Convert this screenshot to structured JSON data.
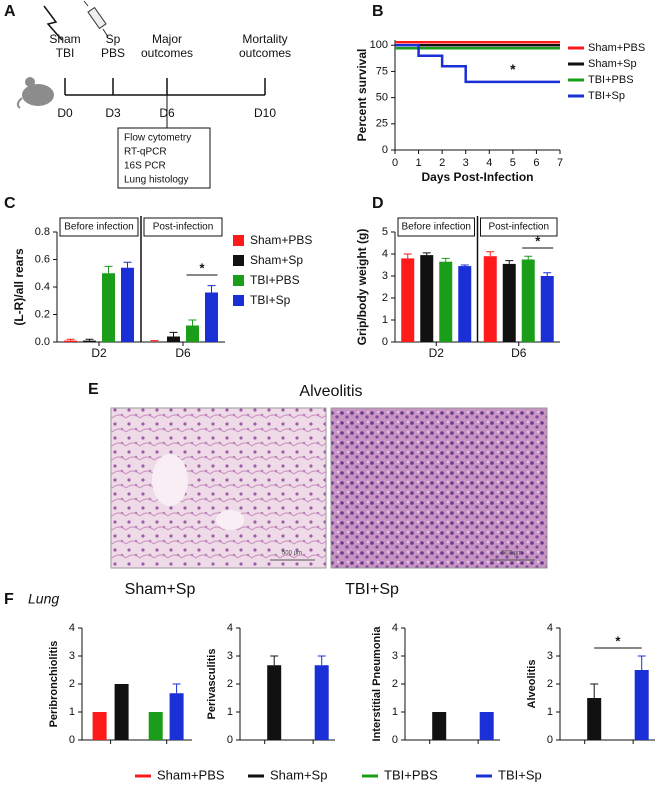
{
  "panel_labels": [
    "A",
    "B",
    "C",
    "D",
    "E",
    "F"
  ],
  "timeline": {
    "events": [
      {
        "top": [
          "Sham",
          "TBI"
        ],
        "day": "D0"
      },
      {
        "top": [
          "Sp",
          "PBS"
        ],
        "day": "D3"
      },
      {
        "top": [
          "Major",
          "outcomes"
        ],
        "day": "D6"
      },
      {
        "top": [
          "Mortality",
          "outcomes"
        ],
        "day": "D10"
      }
    ],
    "assays": [
      "Flow cytometry",
      "RT-qPCR",
      "16S PCR",
      "Lung histology"
    ]
  },
  "chart_data": [
    {
      "type": "line",
      "step": true,
      "ylabel": "Percent survival",
      "xlabel": "Days Post-Infection",
      "xlim": [
        0,
        7
      ],
      "xticks": [
        0,
        1,
        2,
        3,
        4,
        5,
        6,
        7
      ],
      "ylim": [
        0,
        105
      ],
      "yticks": [
        0,
        25,
        50,
        75,
        100
      ],
      "annotation": "*",
      "series": [
        {
          "name": "Sham+PBS",
          "color": "#ff1a1a",
          "x": [
            0,
            7
          ],
          "values": [
            100,
            100
          ]
        },
        {
          "name": "Sham+Sp",
          "color": "#111111",
          "x": [
            0,
            7
          ],
          "values": [
            100,
            100
          ]
        },
        {
          "name": "TBI+PBS",
          "color": "#1a9e1a",
          "x": [
            0,
            7
          ],
          "values": [
            100,
            100
          ]
        },
        {
          "name": "TBI+Sp",
          "color": "#1a2fd6",
          "x": [
            0,
            1,
            2,
            3,
            7
          ],
          "values": [
            100,
            90,
            80,
            65,
            65
          ]
        }
      ]
    },
    {
      "type": "bar",
      "ylabel": "(L-R)/all rears",
      "categories": [
        "D2",
        "D6"
      ],
      "groups": [
        "Before infection",
        "Post-infection"
      ],
      "ylim": [
        0,
        0.8
      ],
      "yticks": [
        {
          "value": 0,
          "label": "0.0"
        },
        0.2,
        0.4,
        0.6,
        0.8
      ],
      "annotation": "*",
      "series": [
        {
          "name": "Sham+PBS",
          "color": "#ff1a1a",
          "values": [
            0.01,
            0.0
          ],
          "errors": [
            0.01,
            0.01
          ]
        },
        {
          "name": "Sham+Sp",
          "color": "#111111",
          "values": [
            0.01,
            0.04
          ],
          "errors": [
            0.01,
            0.03
          ]
        },
        {
          "name": "TBI+PBS",
          "color": "#1a9e1a",
          "values": [
            0.5,
            0.12
          ],
          "errors": [
            0.05,
            0.04
          ]
        },
        {
          "name": "TBI+Sp",
          "color": "#1a2fd6",
          "values": [
            0.54,
            0.36
          ],
          "errors": [
            0.04,
            0.05
          ]
        }
      ]
    },
    {
      "type": "bar",
      "ylabel": "Grip/body weight (g)",
      "categories": [
        "D2",
        "D6"
      ],
      "groups": [
        "Before infection",
        "Post-infection"
      ],
      "ylim": [
        0,
        5
      ],
      "yticks": [
        0,
        1,
        2,
        3,
        4,
        5
      ],
      "annotation": "*",
      "series": [
        {
          "color": "#ff1a1a",
          "values": [
            3.8,
            3.9
          ],
          "errors": [
            0.2,
            0.2
          ]
        },
        {
          "color": "#111111",
          "values": [
            3.95,
            3.55
          ],
          "errors": [
            0.1,
            0.15
          ]
        },
        {
          "color": "#1a9e1a",
          "values": [
            3.65,
            3.75
          ],
          "errors": [
            0.15,
            0.15
          ]
        },
        {
          "color": "#1a2fd6",
          "values": [
            3.45,
            3.0
          ],
          "errors": [
            0.05,
            0.15
          ]
        }
      ]
    },
    {
      "type": "score",
      "ylabel": "Peribronchiolitis",
      "ylim": [
        0,
        4
      ],
      "yticks": [
        0,
        1,
        2,
        3,
        4
      ],
      "values": [
        1,
        2,
        1,
        1.67
      ],
      "errors": [
        null,
        null,
        null,
        0.33
      ]
    },
    {
      "type": "score",
      "ylabel": "Perivasculitis",
      "ylim": [
        0,
        4
      ],
      "yticks": [
        0,
        1,
        2,
        3,
        4
      ],
      "values": [
        null,
        2.67,
        null,
        2.67
      ],
      "errors": [
        null,
        0.33,
        null,
        0.33
      ]
    },
    {
      "type": "score",
      "ylabel": "Interstitial Pneumonia",
      "ylim": [
        0,
        4
      ],
      "yticks": [
        0,
        1,
        2,
        3,
        4
      ],
      "values": [
        null,
        1,
        null,
        1
      ],
      "errors": [
        null,
        null,
        null,
        null
      ]
    },
    {
      "type": "score",
      "ylabel": "Alveolitis",
      "ylim": [
        0,
        4
      ],
      "yticks": [
        0,
        1,
        2,
        3,
        4
      ],
      "annotation": "*",
      "values": [
        null,
        1.5,
        null,
        2.5
      ],
      "errors": [
        null,
        0.5,
        null,
        0.5
      ]
    }
  ],
  "histology": {
    "title": "Alveolitis",
    "images": [
      {
        "label": "Sham+Sp",
        "scale": "500 µm"
      },
      {
        "label": "TBI+Sp",
        "scale": "500 µm"
      }
    ]
  },
  "f_title": "Lung",
  "legend": [
    {
      "name": "Sham+PBS",
      "color": "#ff1a1a"
    },
    {
      "name": "Sham+Sp",
      "color": "#111111"
    },
    {
      "name": "TBI+PBS",
      "color": "#1a9e1a"
    },
    {
      "name": "TBI+Sp",
      "color": "#1a2fd6"
    }
  ]
}
